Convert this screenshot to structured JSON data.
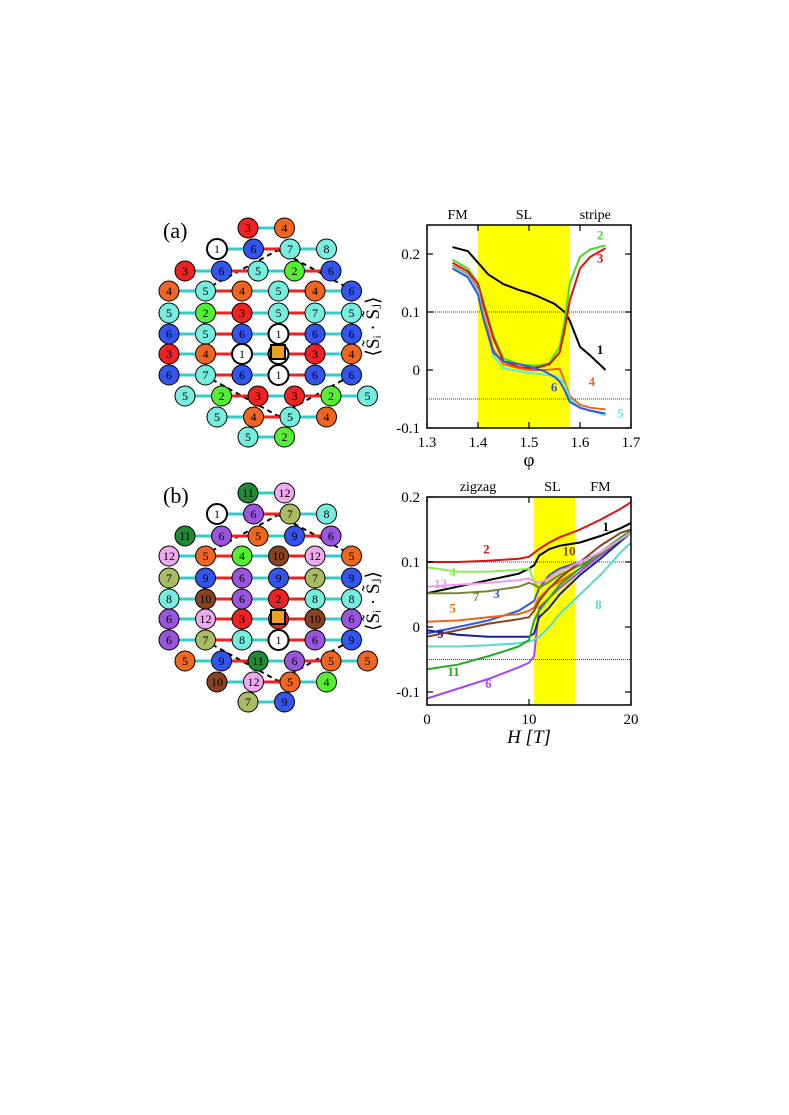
{
  "figure": {
    "panel_a_label": "(a)",
    "panel_b_label": "(b)"
  },
  "lattice_a": {
    "site_colors": {
      "1": "#ffffff",
      "2": "#55ee33",
      "3": "#ee2222",
      "4": "#ee6622",
      "5": "#77eedd",
      "6": "#3355ee",
      "7": "#77eedd",
      "8": "#77eedd"
    },
    "rows": [
      [
        "3",
        "4"
      ],
      [
        "1",
        "6",
        "7",
        "8"
      ],
      [
        "3",
        "6",
        "5",
        "2",
        "6"
      ],
      [
        "4",
        "5",
        "4",
        "5",
        "4",
        "6"
      ],
      [
        "5",
        "2",
        "3",
        "5",
        "7",
        "5"
      ],
      [
        "6",
        "5",
        "6",
        "1",
        "6",
        "6"
      ],
      [
        "3",
        "4",
        "1",
        "1",
        "3",
        "4"
      ],
      [
        "6",
        "7",
        "6",
        "1",
        "6",
        "6"
      ],
      [
        "5",
        "2",
        "3",
        "3",
        "2",
        "5"
      ],
      [
        "5",
        "4",
        "5",
        "4"
      ],
      [
        "5",
        "2"
      ]
    ]
  },
  "lattice_b": {
    "site_colors": {
      "1": "#ffffff",
      "2": "#ee2222",
      "3": "#ee2222",
      "4": "#55ee33",
      "5": "#ee6622",
      "6": "#9955dd",
      "7": "#aabb66",
      "8": "#77eedd",
      "9": "#3355ee",
      "10": "#884422",
      "11": "#228833",
      "12": "#eeaaee"
    },
    "rows": [
      [
        "11",
        "12"
      ],
      [
        "1",
        "6",
        "7",
        "8"
      ],
      [
        "11",
        "6",
        "5",
        "9",
        "6"
      ],
      [
        "12",
        "5",
        "4",
        "10",
        "12",
        "5"
      ],
      [
        "7",
        "9",
        "6",
        "9",
        "7",
        "9"
      ],
      [
        "8",
        "10",
        "6",
        "2",
        "8",
        "8"
      ],
      [
        "6",
        "12",
        "3",
        "3",
        "10",
        "6"
      ],
      [
        "6",
        "7",
        "8",
        "1",
        "6",
        "9"
      ],
      [
        "5",
        "9",
        "11",
        "6",
        "5",
        "5"
      ],
      [
        "10",
        "12",
        "5",
        "4"
      ],
      [
        "7",
        "9"
      ]
    ]
  },
  "chart_data": [
    {
      "type": "line",
      "xlabel": "φ",
      "ylabel": "⟨S̃ᵢ · S̃ⱼ⟩",
      "xlim": [
        1.3,
        1.7
      ],
      "ylim": [
        -0.1,
        0.25
      ],
      "xticks": [
        "1.3",
        "1.4",
        "1.5",
        "1.6",
        "1.7"
      ],
      "yticks": [
        "-0.1",
        "0",
        "0.1",
        "0.2"
      ],
      "x_tick_values": [
        1.3,
        1.4,
        1.5,
        1.6,
        1.7
      ],
      "y_tick_values": [
        -0.1,
        0,
        0.1,
        0.2
      ],
      "highlight": {
        "x": [
          1.4,
          1.58
        ],
        "color": "#ffff00"
      },
      "reference_lines": [
        0.1,
        -0.05
      ],
      "phase_labels": [
        {
          "text": "FM",
          "x": 1.36
        },
        {
          "text": "SL",
          "x": 1.49
        },
        {
          "text": "stripe",
          "x": 1.63
        }
      ],
      "series": [
        {
          "name": "1",
          "color": "#000000",
          "x": [
            1.35,
            1.38,
            1.4,
            1.42,
            1.45,
            1.48,
            1.5,
            1.52,
            1.55,
            1.57,
            1.58,
            1.6,
            1.62,
            1.65
          ],
          "y": [
            0.212,
            0.205,
            0.185,
            0.165,
            0.148,
            0.138,
            0.133,
            0.126,
            0.114,
            0.1,
            0.085,
            0.04,
            0.025,
            0.0
          ],
          "label_x": 1.633,
          "label_y": 0.028
        },
        {
          "name": "2",
          "color": "#44dd22",
          "x": [
            1.35,
            1.38,
            1.4,
            1.41,
            1.43,
            1.45,
            1.48,
            1.5,
            1.52,
            1.54,
            1.56,
            1.57,
            1.58,
            1.6,
            1.62,
            1.65
          ],
          "y": [
            0.19,
            0.175,
            0.15,
            0.12,
            0.06,
            0.02,
            0.01,
            0.008,
            0.008,
            0.012,
            0.04,
            0.085,
            0.15,
            0.195,
            0.208,
            0.215
          ],
          "label_x": 1.633,
          "label_y": 0.225
        },
        {
          "name": "3",
          "color": "#dd1111",
          "x": [
            1.35,
            1.38,
            1.4,
            1.41,
            1.43,
            1.45,
            1.48,
            1.5,
            1.52,
            1.54,
            1.56,
            1.57,
            1.58,
            1.6,
            1.62,
            1.65
          ],
          "y": [
            0.185,
            0.17,
            0.148,
            0.115,
            0.055,
            0.015,
            0.005,
            0.003,
            0.005,
            0.01,
            0.03,
            0.07,
            0.12,
            0.175,
            0.195,
            0.21
          ],
          "label_x": 1.633,
          "label_y": 0.185
        },
        {
          "name": "4",
          "color": "#ee6611",
          "x": [
            1.35,
            1.38,
            1.4,
            1.41,
            1.43,
            1.45,
            1.48,
            1.5,
            1.53,
            1.56,
            1.57,
            1.58,
            1.6,
            1.62,
            1.65
          ],
          "y": [
            0.18,
            0.165,
            0.14,
            0.1,
            0.035,
            0.01,
            0.003,
            0.0,
            0.0,
            0.002,
            -0.02,
            -0.045,
            -0.06,
            -0.065,
            -0.068
          ],
          "label_x": 1.617,
          "label_y": -0.028
        },
        {
          "name": "5",
          "color": "#55eedd",
          "x": [
            1.35,
            1.38,
            1.4,
            1.41,
            1.43,
            1.45,
            1.48,
            1.5,
            1.53,
            1.55,
            1.56,
            1.57,
            1.58,
            1.6,
            1.62,
            1.65
          ],
          "y": [
            0.178,
            0.163,
            0.135,
            0.095,
            0.025,
            0.003,
            -0.002,
            -0.005,
            -0.008,
            -0.01,
            -0.015,
            -0.025,
            -0.05,
            -0.065,
            -0.07,
            -0.078
          ],
          "label_x": 1.673,
          "label_y": -0.082
        },
        {
          "name": "6",
          "color": "#3355ee",
          "x": [
            1.35,
            1.38,
            1.4,
            1.41,
            1.43,
            1.45,
            1.48,
            1.5,
            1.53,
            1.55,
            1.56,
            1.57,
            1.58,
            1.6,
            1.62,
            1.65
          ],
          "y": [
            0.175,
            0.16,
            0.13,
            0.09,
            0.03,
            0.015,
            0.01,
            0.006,
            -0.002,
            -0.012,
            -0.02,
            -0.035,
            -0.055,
            -0.065,
            -0.07,
            -0.075
          ],
          "label_x": 1.543,
          "label_y": -0.037
        }
      ]
    },
    {
      "type": "line",
      "xlabel": "H [T]",
      "ylabel": "⟨S̃ᵢ · S̃ⱼ⟩",
      "xlim": [
        0,
        20
      ],
      "ylim": [
        -0.12,
        0.2
      ],
      "xticks": [
        "0",
        "10",
        "20"
      ],
      "yticks": [
        "-0.1",
        "0",
        "0.1",
        "0.2"
      ],
      "x_tick_values": [
        0,
        10,
        20
      ],
      "y_tick_values": [
        -0.1,
        0,
        0.1,
        0.2
      ],
      "highlight": {
        "x": [
          10.5,
          14.5
        ],
        "color": "#ffff00"
      },
      "reference_lines": [
        0.1,
        -0.05
      ],
      "phase_labels": [
        {
          "text": "zigzag",
          "x": 5
        },
        {
          "text": "SL",
          "x": 12.3
        },
        {
          "text": "FM",
          "x": 17
        }
      ],
      "series": [
        {
          "name": "1",
          "color": "#000000",
          "x": [
            0,
            3,
            6,
            9,
            10,
            10.5,
            11,
            12,
            13,
            15,
            17,
            19,
            20
          ],
          "y": [
            0.052,
            0.062,
            0.072,
            0.082,
            0.09,
            0.095,
            0.11,
            0.12,
            0.125,
            0.13,
            0.14,
            0.152,
            0.16
          ],
          "label_x": 17.2,
          "label_y": 0.148
        },
        {
          "name": "2",
          "color": "#dd1111",
          "x": [
            0,
            3,
            6,
            9,
            10,
            11,
            12,
            13,
            15,
            17,
            19,
            20
          ],
          "y": [
            0.1,
            0.1,
            0.102,
            0.105,
            0.108,
            0.12,
            0.13,
            0.138,
            0.15,
            0.165,
            0.182,
            0.192
          ],
          "label_x": 5.5,
          "label_y": 0.113
        },
        {
          "name": "3",
          "color": "#3355ee",
          "x": [
            0,
            3,
            6,
            9,
            10,
            10.5,
            11,
            12,
            13,
            15,
            17,
            19,
            20
          ],
          "y": [
            -0.01,
            0.0,
            0.01,
            0.025,
            0.035,
            0.04,
            0.06,
            0.08,
            0.09,
            0.1,
            0.115,
            0.135,
            0.145
          ],
          "label_x": 6.5,
          "label_y": 0.045
        },
        {
          "name": "4",
          "color": "#88ee55",
          "x": [
            0,
            3,
            6,
            9,
            10,
            10.5,
            11,
            12,
            13,
            15,
            17,
            19,
            20
          ],
          "y": [
            0.092,
            0.085,
            0.085,
            0.088,
            0.09,
            0.07,
            0.06,
            0.07,
            0.08,
            0.095,
            0.11,
            0.135,
            0.145
          ],
          "label_x": 2.2,
          "label_y": 0.078
        },
        {
          "name": "5",
          "color": "#ee6611",
          "x": [
            0,
            3,
            6,
            9,
            10,
            10.5,
            11,
            12,
            13,
            15,
            17,
            19,
            20
          ],
          "y": [
            0.008,
            0.01,
            0.015,
            0.02,
            0.025,
            0.03,
            0.045,
            0.06,
            0.07,
            0.09,
            0.11,
            0.135,
            0.145
          ],
          "label_x": 2.2,
          "label_y": 0.022
        },
        {
          "name": "6",
          "color": "#aa44ee",
          "x": [
            0,
            3,
            6,
            9,
            10,
            10.5,
            11,
            12,
            13,
            15,
            17,
            19,
            20
          ],
          "y": [
            -0.11,
            -0.095,
            -0.08,
            -0.062,
            -0.055,
            -0.045,
            0.03,
            0.045,
            0.06,
            0.085,
            0.11,
            0.135,
            0.145
          ],
          "label_x": 5.7,
          "label_y": -0.094
        },
        {
          "name": "7",
          "color": "#778833",
          "x": [
            0,
            3,
            6,
            9,
            10,
            10.5,
            11,
            12,
            13,
            15,
            17,
            19,
            20
          ],
          "y": [
            0.052,
            0.052,
            0.055,
            0.062,
            0.068,
            0.065,
            0.06,
            0.07,
            0.08,
            0.095,
            0.112,
            0.135,
            0.145
          ],
          "label_x": 4.5,
          "label_y": 0.04
        },
        {
          "name": "8",
          "color": "#55ddcc",
          "x": [
            0,
            3,
            6,
            9,
            10,
            10.5,
            11,
            12,
            13,
            15,
            17,
            19,
            20
          ],
          "y": [
            -0.03,
            -0.03,
            -0.028,
            -0.025,
            -0.022,
            -0.02,
            -0.015,
            0.0,
            0.02,
            0.05,
            0.08,
            0.115,
            0.13
          ],
          "label_x": 16.5,
          "label_y": 0.028
        },
        {
          "name": "9",
          "color": "#112299",
          "x": [
            0,
            3,
            6,
            9,
            10,
            10.5,
            11,
            12,
            13,
            15,
            17,
            19,
            20
          ],
          "y": [
            -0.005,
            -0.012,
            -0.015,
            -0.015,
            -0.015,
            -0.01,
            0.015,
            0.03,
            0.05,
            0.08,
            0.105,
            0.132,
            0.145
          ],
          "label_x": 1.0,
          "label_y": -0.017
        },
        {
          "name": "10",
          "color": "#884422",
          "x": [
            0,
            3,
            6,
            9,
            10,
            10.5,
            11,
            12,
            13,
            15,
            17,
            19,
            20
          ],
          "y": [
            -0.015,
            -0.005,
            0.005,
            0.012,
            0.015,
            0.025,
            0.04,
            0.06,
            0.075,
            0.1,
            0.125,
            0.145,
            0.15
          ],
          "label_x": 13.3,
          "label_y": 0.11
        },
        {
          "name": "11",
          "color": "#22aa22",
          "x": [
            0,
            3,
            6,
            9,
            10,
            10.5,
            11,
            12,
            13,
            15,
            17,
            19,
            20
          ],
          "y": [
            -0.065,
            -0.058,
            -0.045,
            -0.03,
            -0.02,
            0.01,
            0.025,
            0.045,
            0.065,
            0.09,
            0.115,
            0.138,
            0.148
          ],
          "label_x": 2.0,
          "label_y": -0.075
        },
        {
          "name": "12",
          "color": "#ee99ee",
          "x": [
            0,
            3,
            6,
            9,
            10,
            10.5,
            11,
            12,
            13,
            15,
            17,
            19,
            20
          ],
          "y": [
            0.062,
            0.065,
            0.068,
            0.072,
            0.075,
            0.07,
            0.068,
            0.075,
            0.085,
            0.1,
            0.115,
            0.135,
            0.145
          ],
          "label_x": 0.7,
          "label_y": 0.06
        }
      ]
    }
  ]
}
